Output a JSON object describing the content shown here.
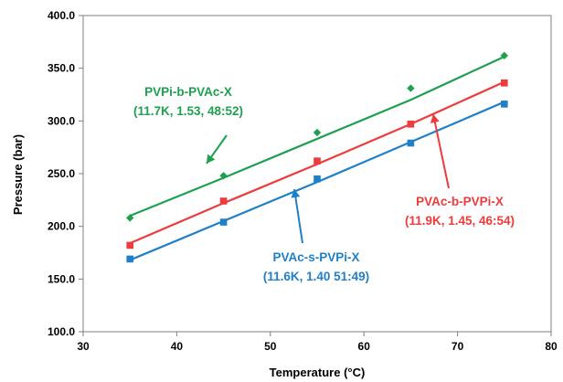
{
  "chart_data": {
    "type": "scatter",
    "xlabel": "Temperature (°C)",
    "ylabel": "Pressure (bar)",
    "xlim": [
      30,
      80
    ],
    "ylim": [
      100,
      400
    ],
    "x_ticks": [
      "30",
      "40",
      "50",
      "60",
      "70",
      "80"
    ],
    "y_ticks": [
      "100.0",
      "150.0",
      "200.0",
      "250.0",
      "300.0",
      "350.0",
      "400.0"
    ],
    "grid": false,
    "legend": "none",
    "series": [
      {
        "key": "green",
        "marker": "diamond",
        "color": "#1fa050",
        "x": [
          35,
          45,
          55,
          65,
          75
        ],
        "y": [
          208,
          248,
          289,
          331,
          362
        ],
        "fit": [
          [
            35,
            210
          ],
          [
            45,
            246
          ],
          [
            55,
            283
          ],
          [
            65,
            320
          ],
          [
            75,
            361
          ]
        ],
        "annotation": [
          "PVPi-b-PVAc-X",
          "(11.7K, 1.53, 48:52)"
        ]
      },
      {
        "key": "red",
        "marker": "square",
        "color": "#ee3b3b",
        "x": [
          35,
          45,
          55,
          65,
          75
        ],
        "y": [
          182,
          224,
          262,
          297,
          336
        ],
        "fit": [
          [
            35,
            184
          ],
          [
            45,
            222
          ],
          [
            55,
            259
          ],
          [
            65,
            297
          ],
          [
            75,
            337
          ]
        ],
        "annotation": [
          "PVAc-b-PVPi-X",
          "(11.9K, 1.45, 46:54)"
        ]
      },
      {
        "key": "blue",
        "marker": "square",
        "color": "#1f80c8",
        "x": [
          35,
          45,
          55,
          65,
          75
        ],
        "y": [
          169,
          204,
          245,
          279,
          316
        ],
        "fit": [
          [
            35,
            168
          ],
          [
            45,
            205
          ],
          [
            55,
            242
          ],
          [
            65,
            280
          ],
          [
            75,
            318
          ]
        ],
        "annotation": [
          "PVAc-s-PVPi-X",
          "(11.6K, 1.40 51:49)"
        ]
      }
    ]
  }
}
